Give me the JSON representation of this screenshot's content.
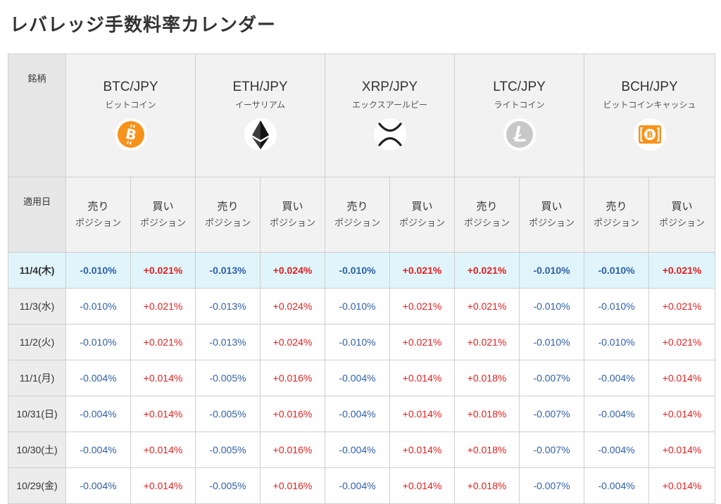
{
  "page": {
    "title": "レバレッジ手数料率カレンダー"
  },
  "table": {
    "brand_label": "銘柄",
    "date_label": "適用日",
    "sell_label": "売り",
    "buy_label": "買い",
    "position_label": "ポジション",
    "coins": [
      {
        "symbol": "BTC/JPY",
        "name": "ビットコイン",
        "icon": "bitcoin-icon",
        "color": "#f7931a"
      },
      {
        "symbol": "ETH/JPY",
        "name": "イーサリアム",
        "icon": "ethereum-icon",
        "color": "#333333"
      },
      {
        "symbol": "XRP/JPY",
        "name": "エックスアールピー",
        "icon": "xrp-icon",
        "color": "#222222"
      },
      {
        "symbol": "LTC/JPY",
        "name": "ライトコイン",
        "icon": "litecoin-icon",
        "color": "#c8c8c8"
      },
      {
        "symbol": "BCH/JPY",
        "name": "ビットコインキャッシュ",
        "icon": "bitcoin-cash-icon",
        "color": "#f7931a"
      }
    ],
    "rows": [
      {
        "date": "11/4(木)",
        "values": [
          "-0.010%",
          "+0.021%",
          "-0.013%",
          "+0.024%",
          "-0.010%",
          "+0.021%",
          "+0.021%",
          "-0.010%",
          "-0.010%",
          "+0.021%"
        ]
      },
      {
        "date": "11/3(水)",
        "values": [
          "-0.010%",
          "+0.021%",
          "-0.013%",
          "+0.024%",
          "-0.010%",
          "+0.021%",
          "+0.021%",
          "-0.010%",
          "-0.010%",
          "+0.021%"
        ]
      },
      {
        "date": "11/2(火)",
        "values": [
          "-0.010%",
          "+0.021%",
          "-0.013%",
          "+0.024%",
          "-0.010%",
          "+0.021%",
          "+0.021%",
          "-0.010%",
          "-0.010%",
          "+0.021%"
        ]
      },
      {
        "date": "11/1(月)",
        "values": [
          "-0.004%",
          "+0.014%",
          "-0.005%",
          "+0.016%",
          "-0.004%",
          "+0.014%",
          "+0.018%",
          "-0.007%",
          "-0.004%",
          "+0.014%"
        ]
      },
      {
        "date": "10/31(日)",
        "values": [
          "-0.004%",
          "+0.014%",
          "-0.005%",
          "+0.016%",
          "-0.004%",
          "+0.014%",
          "+0.018%",
          "-0.007%",
          "-0.004%",
          "+0.014%"
        ]
      },
      {
        "date": "10/30(土)",
        "values": [
          "-0.004%",
          "+0.014%",
          "-0.005%",
          "+0.016%",
          "-0.004%",
          "+0.014%",
          "+0.018%",
          "-0.007%",
          "-0.004%",
          "+0.014%"
        ]
      },
      {
        "date": "10/29(金)",
        "values": [
          "-0.004%",
          "+0.014%",
          "-0.005%",
          "+0.016%",
          "-0.004%",
          "+0.014%",
          "+0.018%",
          "-0.007%",
          "-0.004%",
          "+0.014%"
        ]
      }
    ],
    "colors": {
      "negative": "#2f5fa8",
      "positive": "#e32020",
      "today_highlight": "#dff5fb"
    }
  }
}
